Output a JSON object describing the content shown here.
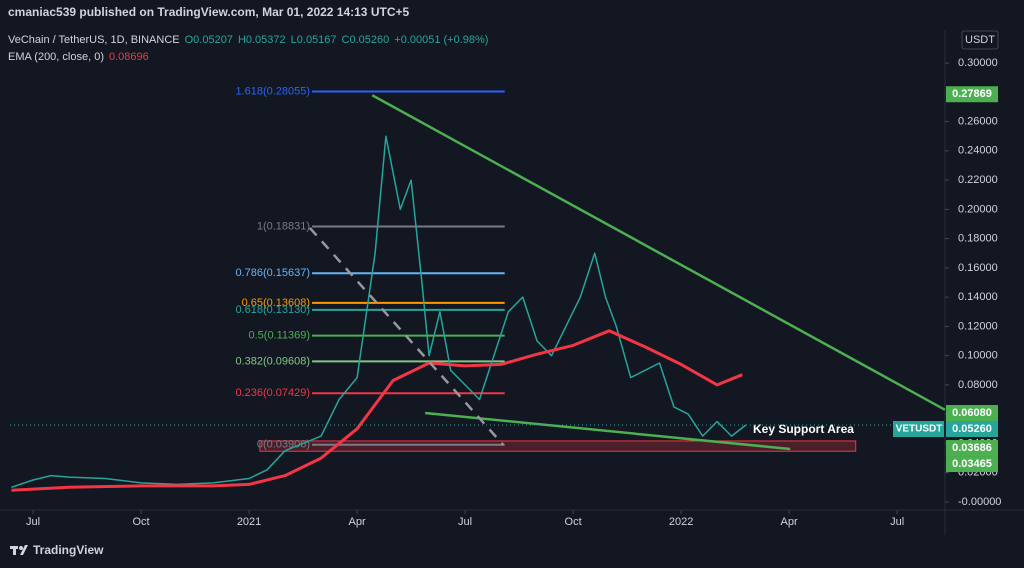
{
  "chart_data": {
    "type": "line",
    "header": "cmaniac539 published on TradingView.com, Mar 01, 2022 14:13 UTC+5",
    "legend": {
      "symbol": "VeChain / TetherUS, 1D, BINANCE",
      "ohlc": [
        "O0.05207",
        "H0.05372",
        "L0.05167",
        "C0.05260"
      ],
      "change": "+0.00051 (+0.98%)",
      "ema_name": "EMA (200, close, 0)",
      "ema_value": 0.08696
    },
    "currency": "USDT",
    "footer": "TradingView",
    "annotation": "Key Support Area",
    "xlim": [
      5.36,
      31.33
    ],
    "xticks": [
      {
        "value": 6,
        "label": "Jul"
      },
      {
        "value": 9,
        "label": "Oct"
      },
      {
        "value": 12,
        "label": "2021"
      },
      {
        "value": 15,
        "label": "Apr"
      },
      {
        "value": 18,
        "label": "Jul"
      },
      {
        "value": 21,
        "label": "Oct"
      },
      {
        "value": 24,
        "label": "2022"
      },
      {
        "value": 27,
        "label": "Apr"
      },
      {
        "value": 30,
        "label": "Jul"
      }
    ],
    "ylim": [
      -0.0055,
      0.3226
    ],
    "yticks": [
      {
        "value": 0,
        "label": "-0.00000"
      },
      {
        "value": 0.02,
        "label": "0.02000"
      },
      {
        "value": 0.04,
        "label": "0.04000"
      },
      {
        "value": 0.06,
        "label": "0.06000"
      },
      {
        "value": 0.08,
        "label": "0.08000"
      },
      {
        "value": 0.1,
        "label": "0.10000"
      },
      {
        "value": 0.12,
        "label": "0.12000"
      },
      {
        "value": 0.14,
        "label": "0.14000"
      },
      {
        "value": 0.16,
        "label": "0.16000"
      },
      {
        "value": 0.18,
        "label": "0.18000"
      },
      {
        "value": 0.2,
        "label": "0.20000"
      },
      {
        "value": 0.22,
        "label": "0.22000"
      },
      {
        "value": 0.24,
        "label": "0.24000"
      },
      {
        "value": 0.26,
        "label": "0.26000"
      },
      {
        "value": 0.3,
        "label": "0.30000"
      }
    ],
    "series": [
      {
        "name": "VETUSDT",
        "color": "#26a69a",
        "x": [
          5.4,
          6,
          6.5,
          7,
          8,
          9,
          10,
          11,
          12,
          12.5,
          13,
          13.5,
          14,
          14.5,
          15,
          15.5,
          15.8,
          16.2,
          16.5,
          16.8,
          17,
          17.3,
          17.6,
          18,
          18.4,
          18.8,
          19.2,
          19.6,
          20,
          20.4,
          20.8,
          21.2,
          21.6,
          21.9,
          22.2,
          22.6,
          23,
          23.4,
          23.8,
          24.2,
          24.6,
          25,
          25.4,
          25.8
        ],
        "values": [
          0.01,
          0.015,
          0.018,
          0.017,
          0.016,
          0.013,
          0.012,
          0.013,
          0.016,
          0.022,
          0.035,
          0.04,
          0.045,
          0.07,
          0.085,
          0.17,
          0.25,
          0.2,
          0.22,
          0.15,
          0.1,
          0.13,
          0.09,
          0.08,
          0.07,
          0.1,
          0.13,
          0.14,
          0.11,
          0.1,
          0.12,
          0.14,
          0.17,
          0.14,
          0.12,
          0.085,
          0.09,
          0.095,
          0.065,
          0.06,
          0.045,
          0.055,
          0.045,
          0.0526
        ]
      },
      {
        "name": "EMA (200, close, 0)",
        "color": "#f23645",
        "x": [
          5.4,
          7,
          9,
          11,
          12,
          13,
          14,
          15,
          16,
          17,
          18,
          19,
          20,
          21,
          22,
          23,
          24,
          25,
          25.7
        ],
        "values": [
          0.008,
          0.01,
          0.011,
          0.011,
          0.012,
          0.018,
          0.03,
          0.05,
          0.083,
          0.095,
          0.093,
          0.094,
          0.101,
          0.107,
          0.117,
          0.106,
          0.094,
          0.08,
          0.08696
        ]
      }
    ],
    "fib_x": [
      13.75,
      19.1
    ],
    "fib_levels": [
      {
        "label": "1.618(0.28055)",
        "value": 0.28055,
        "color": "#2962ff"
      },
      {
        "label": "1(0.18831)",
        "value": 0.18831,
        "color": "#787b86"
      },
      {
        "label": "0.786(0.15637)",
        "value": 0.15637,
        "color": "#64b5f6"
      },
      {
        "label": "0.65(0.13608)",
        "value": 0.13608,
        "color": "#ff9800"
      },
      {
        "label": "0.618(0.13130)",
        "value": 0.1313,
        "color": "#26a69a"
      },
      {
        "label": "0.5(0.11369)",
        "value": 0.11369,
        "color": "#4caf50"
      },
      {
        "label": "0.382(0.09608)",
        "value": 0.09608,
        "color": "#81c784"
      },
      {
        "label": "0.236(0.07429)",
        "value": 0.07429,
        "color": "#f23645"
      },
      {
        "label": "0(0.03906)",
        "value": 0.03906,
        "color": "#787b86"
      }
    ],
    "trendlines": [
      {
        "x": [
          15.42,
          31.33
        ],
        "values": [
          0.278,
          0.063
        ],
        "color": "#4caf50"
      },
      {
        "x": [
          16.89,
          27.03
        ],
        "values": [
          0.0608,
          0.0362
        ],
        "color": "#4caf50"
      },
      {
        "x": [
          13.69,
          19.06
        ],
        "values": [
          0.1873,
          0.039
        ],
        "color": "#9598a1",
        "dashed": true
      }
    ],
    "support_zone": {
      "x": [
        12.3,
        28.85
      ],
      "values": [
        0.03465,
        0.0417
      ],
      "color": "#f23645"
    },
    "price_labels": [
      {
        "value": 0.27869,
        "color": "#4caf50"
      },
      {
        "value": 0.0608,
        "label": "0.06080",
        "color": "#4caf50"
      },
      {
        "value": 0.0526,
        "label": "0.05260",
        "name": "VETUSDT",
        "color": "#26a69a"
      },
      {
        "value": 0.03686,
        "color": "#4caf50"
      },
      {
        "value": 0.03465,
        "color": "#4caf50"
      }
    ]
  }
}
